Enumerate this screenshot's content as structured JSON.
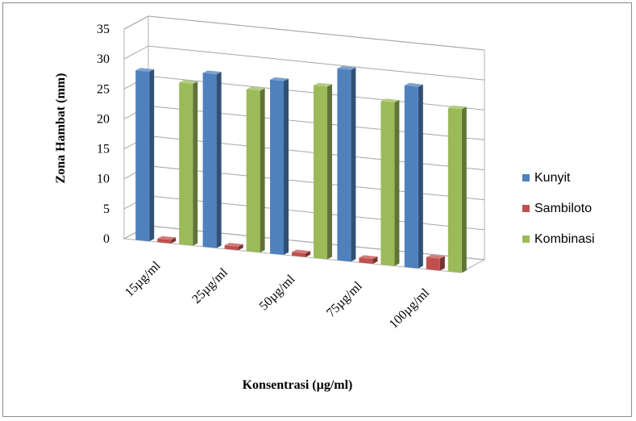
{
  "chart_data": {
    "type": "bar",
    "style": "3d-clustered-column",
    "categories": [
      "15µg/ml",
      "25µg/ml",
      "50µg/ml",
      "75µg/ml",
      "100µg/ml"
    ],
    "series": [
      {
        "name": "Kunyit",
        "color": "#4f81bd",
        "values": [
          28.3,
          29.0,
          29.0,
          32.0,
          30.3
        ]
      },
      {
        "name": "Sambiloto",
        "color": "#c0504d",
        "values": [
          0.6,
          0.6,
          0.6,
          0.8,
          2.0
        ]
      },
      {
        "name": "Kombinasi",
        "color": "#9bbb59",
        "values": [
          27.0,
          27.0,
          28.8,
          27.3,
          27.3
        ]
      }
    ],
    "xlabel": "Konsentrasi (µg/ml)",
    "ylabel": "Zona Hambat (mm)",
    "ylim": [
      0,
      35
    ],
    "yticks": [
      0,
      5,
      10,
      15,
      20,
      25,
      30,
      35
    ],
    "grid": true,
    "legend_position": "right"
  }
}
